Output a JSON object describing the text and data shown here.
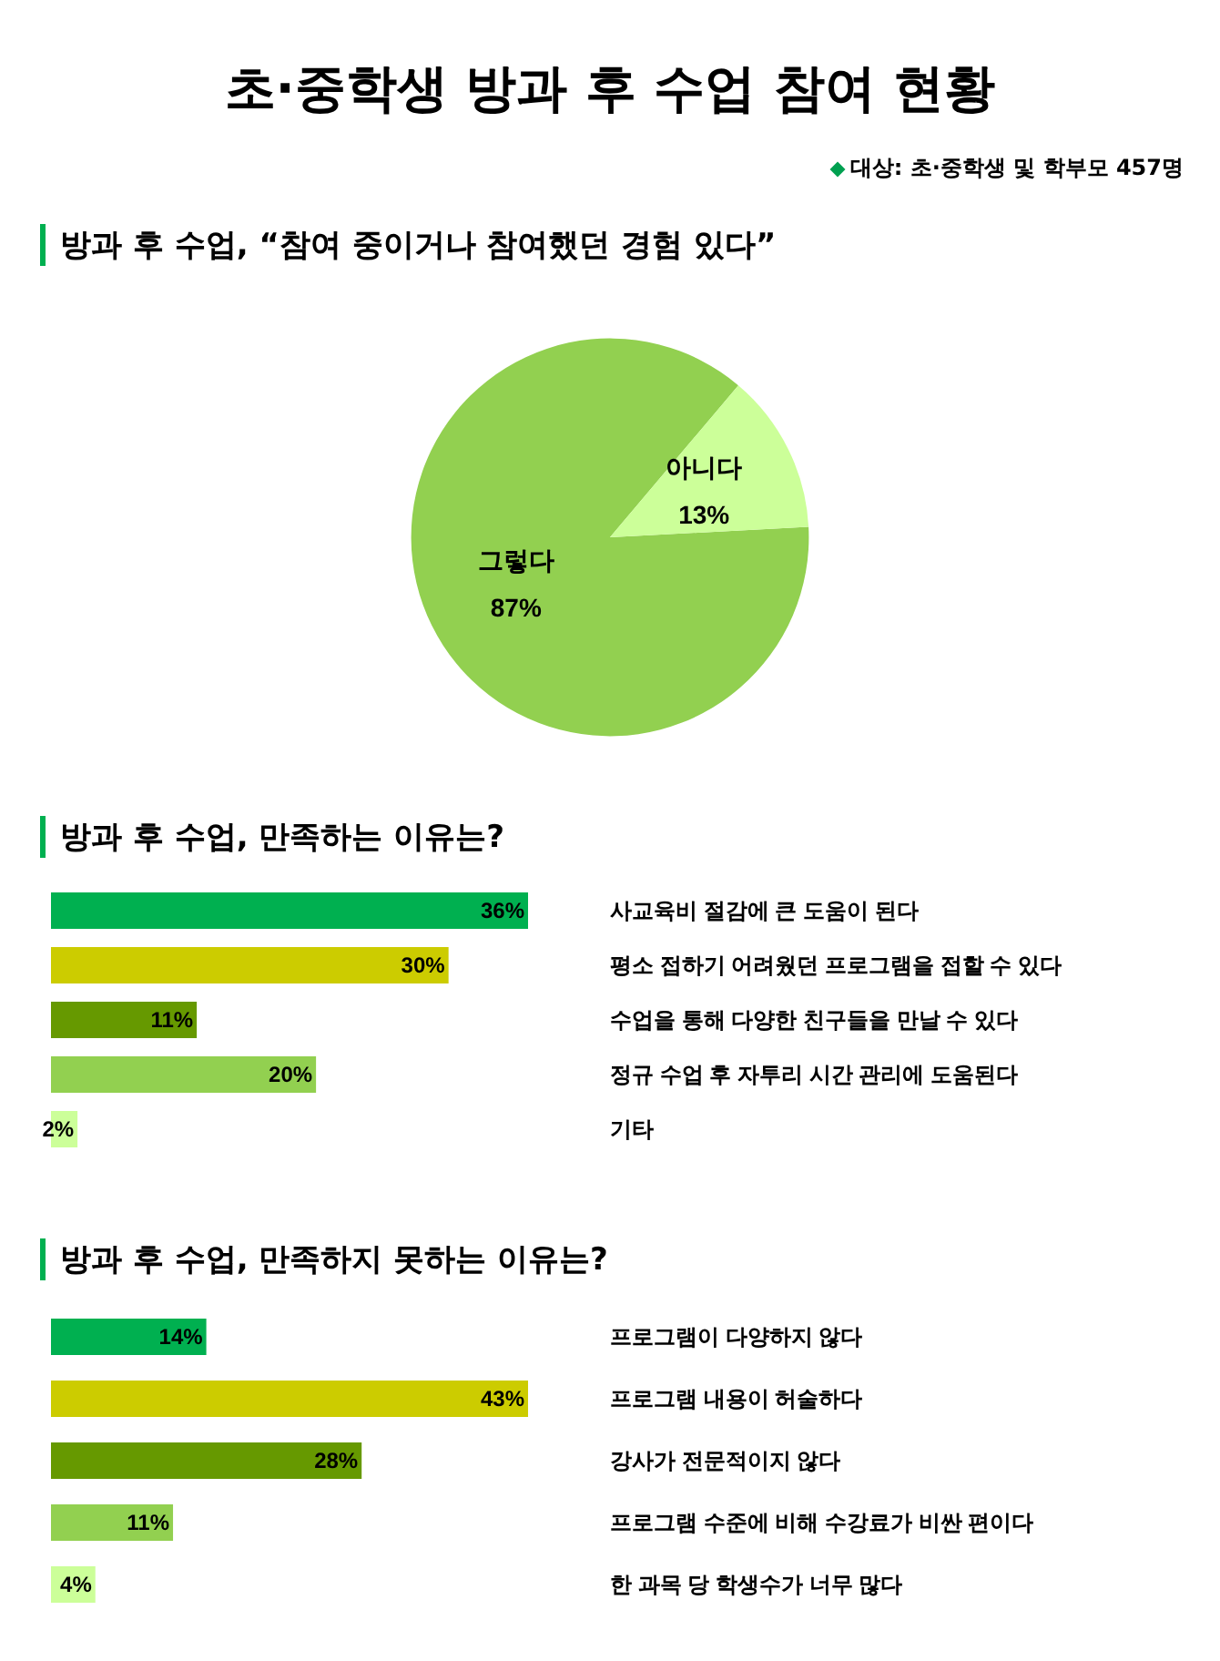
{
  "chart_data": [
    {
      "type": "other",
      "title": "초·중학생 방과 후 수업 참여 현황",
      "annotations": [
        "대상: 초·중학생 및 학부모 457명"
      ]
    },
    {
      "type": "pie",
      "title": "방과 후 수업, “참여 중이거나 참여했던 경험 있다”",
      "categories": [
        "그렇다",
        "아니다"
      ],
      "values": [
        87,
        13
      ],
      "colors": [
        "#92d050",
        "#ccff99"
      ],
      "value_labels": [
        "87%",
        "13%"
      ]
    },
    {
      "type": "bar",
      "orientation": "horizontal",
      "title": "방과 후 수업, 만족하는 이유는?",
      "categories": [
        "사교육비 절감에 큰 도움이 된다",
        "평소 접하기 어려웠던 프로그램을 접할 수 있다",
        "수업을 통해 다양한 친구들을 만날 수 있다",
        "정규 수업 후 자투리 시간 관리에 도움된다",
        "기타"
      ],
      "values": [
        36,
        30,
        11,
        20,
        2
      ],
      "colors": [
        "#00b050",
        "#cccc00",
        "#669900",
        "#92d050",
        "#ccff99"
      ],
      "value_labels": [
        "36%",
        "30%",
        "11%",
        "20%",
        "2%"
      ]
    },
    {
      "type": "bar",
      "orientation": "horizontal",
      "title": "방과 후 수업, 만족하지 못하는 이유는?",
      "categories": [
        "프로그램이 다양하지 않다",
        "프로그램 내용이 허술하다",
        "강사가 전문적이지 않다",
        "프로그램 수준에 비해 수강료가 비싼 편이다",
        "한 과목 당 학생수가 너무 많다"
      ],
      "values": [
        14,
        43,
        28,
        11,
        4
      ],
      "colors": [
        "#00b050",
        "#cccc00",
        "#669900",
        "#92d050",
        "#ccff99"
      ],
      "value_labels": [
        "14%",
        "43%",
        "28%",
        "11%",
        "4%"
      ]
    }
  ]
}
